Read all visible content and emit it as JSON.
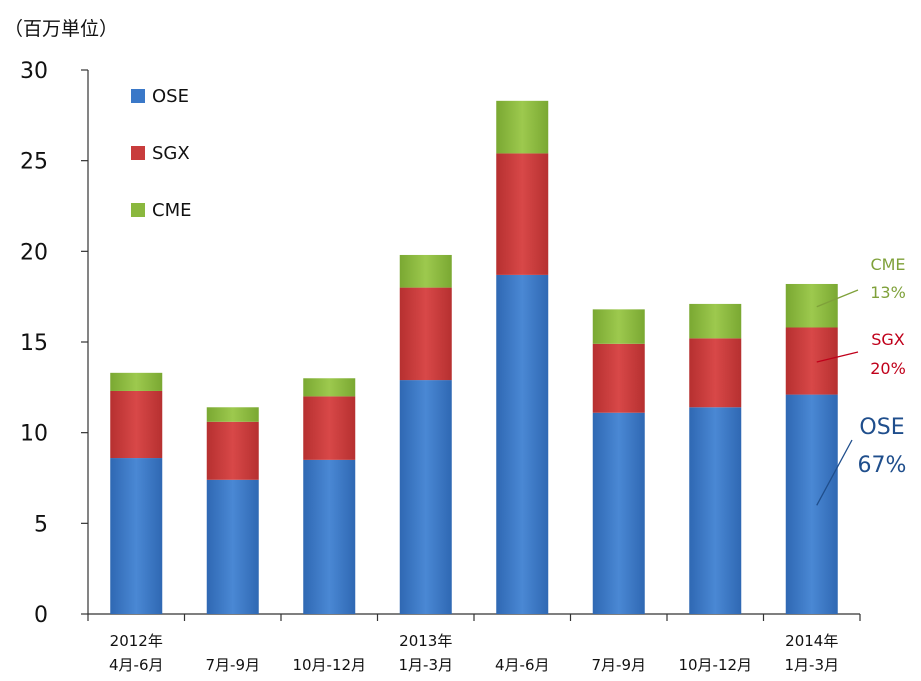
{
  "chart_data": {
    "type": "bar",
    "stacked": true,
    "unit_label": "（百万単位）",
    "categories": [
      [
        "2012年",
        "4月-6月"
      ],
      [
        "",
        "7月-9月"
      ],
      [
        "",
        "10月-12月"
      ],
      [
        "2013年",
        "1月-3月"
      ],
      [
        "",
        "4月-6月"
      ],
      [
        "",
        "7月-9月"
      ],
      [
        "",
        "10月-12月"
      ],
      [
        "2014年",
        "1月-3月"
      ]
    ],
    "series": [
      {
        "name": "OSE",
        "color": "#3a78c8",
        "values": [
          8.6,
          7.4,
          8.5,
          12.9,
          18.7,
          11.1,
          11.4,
          12.1
        ]
      },
      {
        "name": "SGX",
        "color": "#c83c3c",
        "values": [
          3.7,
          3.2,
          3.5,
          5.1,
          6.7,
          3.8,
          3.8,
          3.7
        ]
      },
      {
        "name": "CME",
        "color": "#8ab83e",
        "values": [
          1.0,
          0.8,
          1.0,
          1.8,
          2.9,
          1.9,
          1.9,
          2.4
        ]
      }
    ],
    "ylim": [
      0,
      30
    ],
    "yticks": [
      0,
      5,
      10,
      15,
      20,
      25,
      30
    ],
    "legend_position": "top-left",
    "annotations": [
      {
        "series": "CME",
        "label": "CME",
        "pct": "13%",
        "color": "#7fa13a"
      },
      {
        "series": "SGX",
        "label": "SGX",
        "pct": "20%",
        "color": "#c0001a"
      },
      {
        "series": "OSE",
        "label": "OSE",
        "pct": "67%",
        "color": "#1f4e8c"
      }
    ]
  }
}
